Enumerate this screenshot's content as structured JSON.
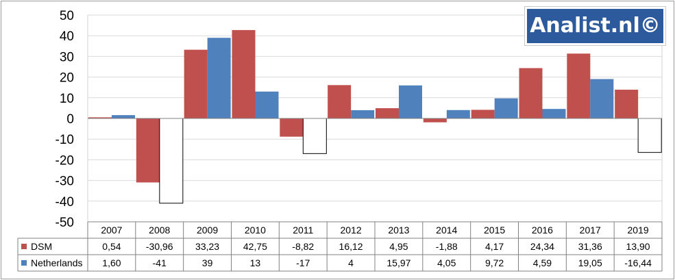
{
  "logo": {
    "text": "Analist.nl©"
  },
  "colors": {
    "dsm": "#c0504d",
    "netherlands": "#4f81bd",
    "negative_fill": "#ffffff",
    "grid": "#d9d9d9",
    "axis": "#808080"
  },
  "chart_data": {
    "type": "bar",
    "title": "",
    "xlabel": "",
    "ylabel": "",
    "ylim": [
      -50,
      50
    ],
    "yticks": [
      50,
      40,
      30,
      20,
      10,
      0,
      -10,
      -20,
      -30,
      -40,
      -50
    ],
    "grid": true,
    "legend": "data-table",
    "categories": [
      "2007",
      "2008",
      "2009",
      "2010",
      "2011",
      "2012",
      "2013",
      "2014",
      "2015",
      "2016",
      "2017",
      "2019"
    ],
    "series": [
      {
        "name": "DSM",
        "color": "#c0504d",
        "values": [
          0.54,
          -30.96,
          33.23,
          42.75,
          -8.82,
          16.12,
          4.95,
          -1.88,
          4.17,
          24.34,
          31.36,
          13.9
        ],
        "labels": [
          "0,54",
          "-30,96",
          "33,23",
          "42,75",
          "-8,82",
          "16,12",
          "4,95",
          "-1,88",
          "4,17",
          "24,34",
          "31,36",
          "13,90"
        ]
      },
      {
        "name": "Netherlands",
        "color": "#4f81bd",
        "invert_if_negative": true,
        "values": [
          1.6,
          -41,
          39,
          13,
          -17,
          4,
          15.97,
          4.05,
          9.72,
          4.59,
          19.05,
          -16.44
        ],
        "labels": [
          "1,60",
          "-41",
          "39",
          "13",
          "-17",
          "4",
          "15,97",
          "4,05",
          "9,72",
          "4,59",
          "19,05",
          "-16,44"
        ]
      }
    ]
  }
}
